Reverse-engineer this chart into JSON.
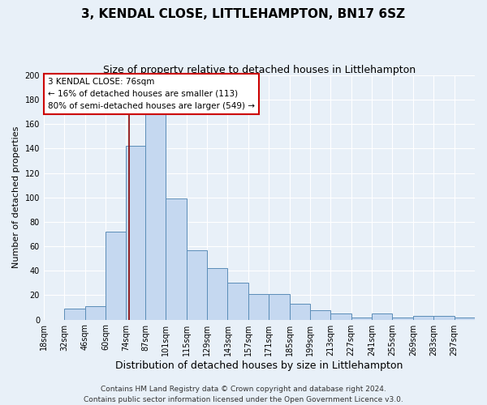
{
  "title": "3, KENDAL CLOSE, LITTLEHAMPTON, BN17 6SZ",
  "subtitle": "Size of property relative to detached houses in Littlehampton",
  "xlabel": "Distribution of detached houses by size in Littlehampton",
  "ylabel": "Number of detached properties",
  "categories": [
    "18sqm",
    "32sqm",
    "46sqm",
    "60sqm",
    "74sqm",
    "87sqm",
    "101sqm",
    "115sqm",
    "129sqm",
    "143sqm",
    "157sqm",
    "171sqm",
    "185sqm",
    "199sqm",
    "213sqm",
    "227sqm",
    "241sqm",
    "255sqm",
    "269sqm",
    "283sqm",
    "297sqm"
  ],
  "bar_heights": [
    0,
    9,
    11,
    72,
    142,
    168,
    99,
    57,
    42,
    30,
    21,
    21,
    13,
    8,
    5,
    2,
    5,
    2,
    3,
    3,
    2
  ],
  "bar_color": "#c5d8f0",
  "bar_edge_color": "#5b8db8",
  "ylim": [
    0,
    200
  ],
  "yticks": [
    0,
    20,
    40,
    60,
    80,
    100,
    120,
    140,
    160,
    180,
    200
  ],
  "red_line_x": 76,
  "annotation_title": "3 KENDAL CLOSE: 76sqm",
  "annotation_line1": "← 16% of detached houses are smaller (113)",
  "annotation_line2": "80% of semi-detached houses are larger (549) →",
  "annotation_box_color": "#ffffff",
  "annotation_box_edge": "#cc0000",
  "footer_line1": "Contains HM Land Registry data © Crown copyright and database right 2024.",
  "footer_line2": "Contains public sector information licensed under the Open Government Licence v3.0.",
  "background_color": "#e8f0f8",
  "plot_bg_color": "#e8f0f8",
  "title_fontsize": 11,
  "subtitle_fontsize": 9,
  "xlabel_fontsize": 9,
  "ylabel_fontsize": 8,
  "tick_fontsize": 7,
  "annotation_fontsize": 7.5,
  "footer_fontsize": 6.5
}
